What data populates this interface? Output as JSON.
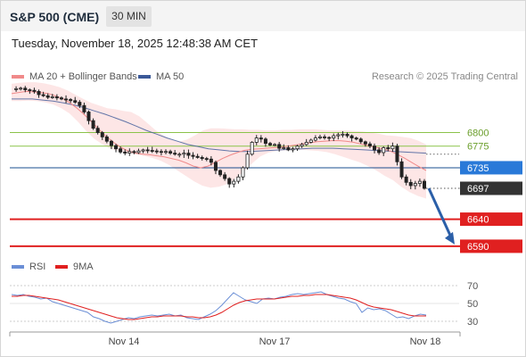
{
  "header": {
    "title": "S&P 500 (CME)",
    "timeframe": "30 MIN",
    "datetime": "Tuesday, November 18, 2025 12:48:38 AM CET"
  },
  "legend": {
    "ma20_label": "MA 20 + Bollinger Bands",
    "ma50_label": "MA 50",
    "copyright": "Research © 2025 Trading Central",
    "rsi_label": "RSI",
    "rsi_ma_label": "9MA"
  },
  "colors": {
    "ma20": "#f08a8a",
    "ma50": "#3b5998",
    "bollinger_fill": "#fde3e3",
    "resistance": "#8bc34a",
    "support": "#e02020",
    "pivot_line": "#1a4f8f",
    "pivot_tag": "#2979d8",
    "last_price_tag": "#333333",
    "arrow": "#2b5fa8",
    "rsi": "#6b8fd6",
    "rsi_ma": "#e02020"
  },
  "chart_data": [
    {
      "type": "candlestick",
      "title": "",
      "ylim": [
        6575,
        6880
      ],
      "levels": [
        {
          "value": 6800,
          "label": "6800",
          "kind": "resistance"
        },
        {
          "value": 6775,
          "label": "6775",
          "kind": "resistance"
        },
        {
          "value": 6735,
          "label": "6735",
          "kind": "pivot"
        },
        {
          "value": 6697,
          "label": "6697",
          "kind": "last"
        },
        {
          "value": 6640,
          "label": "6640",
          "kind": "support"
        },
        {
          "value": 6590,
          "label": "6590",
          "kind": "support"
        }
      ],
      "x_ticks": [
        "Nov 14",
        "Nov 17",
        "Nov 18"
      ],
      "close_path": [
        6880,
        6881,
        6882,
        6879,
        6878,
        6876,
        6870,
        6868,
        6865,
        6866,
        6864,
        6862,
        6861,
        6859,
        6856,
        6850,
        6838,
        6822,
        6808,
        6800,
        6792,
        6784,
        6776,
        6770,
        6764,
        6762,
        6765,
        6763,
        6766,
        6768,
        6767,
        6766,
        6765,
        6764,
        6765,
        6762,
        6760,
        6760,
        6762,
        6758,
        6756,
        6754,
        6752,
        6751,
        6745,
        6730,
        6722,
        6715,
        6705,
        6710,
        6718,
        6735,
        6760,
        6782,
        6790,
        6788,
        6780,
        6777,
        6778,
        6771,
        6772,
        6768,
        6770,
        6775,
        6778,
        6782,
        6786,
        6790,
        6792,
        6791,
        6790,
        6794,
        6796,
        6797,
        6794,
        6790,
        6788,
        6783,
        6779,
        6775,
        6768,
        6763,
        6772,
        6770,
        6775,
        6746,
        6718,
        6708,
        6702,
        6706,
        6710,
        6697
      ],
      "ma20_path": [
        6872,
        6874,
        6876,
        6875,
        6874,
        6872,
        6868,
        6863,
        6855,
        6845,
        6833,
        6820,
        6806,
        6793,
        6782,
        6773,
        6766,
        6762,
        6760,
        6759,
        6757,
        6755,
        6752,
        6749,
        6744,
        6738,
        6735,
        6738,
        6745,
        6752,
        6758,
        6763,
        6767,
        6769,
        6770,
        6771,
        6772,
        6773,
        6775,
        6777,
        6779,
        6781,
        6783,
        6784,
        6785,
        6785,
        6784,
        6782,
        6779,
        6776,
        6773,
        6770,
        6766,
        6760,
        6753,
        6745,
        6737,
        6730
      ],
      "bb_upper": [
        6890,
        6892,
        6893,
        6893,
        6891,
        6888,
        6884,
        6878,
        6870,
        6862,
        6855,
        6850,
        6845,
        6843,
        6840,
        6838,
        6830,
        6818,
        6805,
        6795,
        6787,
        6783,
        6787,
        6795,
        6804,
        6808,
        6808,
        6807,
        6806,
        6806,
        6805,
        6805,
        6804,
        6804,
        6805,
        6805,
        6806,
        6806,
        6806,
        6805,
        6804,
        6804,
        6804,
        6803,
        6802,
        6800,
        6798,
        6795,
        6794,
        6792,
        6790,
        6785,
        6778
      ],
      "bb_lower": [
        6858,
        6858,
        6859,
        6858,
        6856,
        6852,
        6845,
        6835,
        6820,
        6803,
        6788,
        6778,
        6770,
        6765,
        6762,
        6760,
        6757,
        6753,
        6748,
        6740,
        6730,
        6720,
        6710,
        6702,
        6698,
        6700,
        6705,
        6715,
        6728,
        6743,
        6756,
        6763,
        6766,
        6767,
        6768,
        6768,
        6767,
        6766,
        6764,
        6760,
        6755,
        6750,
        6745,
        6738,
        6730,
        6720,
        6712,
        6700,
        6690,
        6683,
        6678
      ],
      "ma50_path": [
        6862,
        6862,
        6862,
        6860,
        6858,
        6855,
        6851,
        6846,
        6840,
        6834,
        6827,
        6820,
        6812,
        6804,
        6797,
        6790,
        6784,
        6778,
        6774,
        6770,
        6768,
        6766,
        6765,
        6765,
        6766,
        6767,
        6768,
        6769,
        6770,
        6771,
        6771,
        6771,
        6770,
        6769,
        6768,
        6767,
        6766,
        6765,
        6764,
        6763,
        6762
      ]
    },
    {
      "type": "line",
      "title": "",
      "ylim": [
        20,
        80
      ],
      "y_ticks": [
        70,
        50,
        30
      ],
      "series": [
        {
          "name": "RSI",
          "values": [
            60,
            59,
            60,
            58,
            57,
            55,
            56,
            52,
            50,
            48,
            46,
            44,
            42,
            40,
            35,
            33,
            30,
            28,
            30,
            32,
            34,
            33,
            35,
            36,
            37,
            36,
            37,
            38,
            36,
            37,
            34,
            33,
            32,
            35,
            38,
            42,
            48,
            55,
            62,
            58,
            54,
            52,
            50,
            55,
            56,
            55,
            57,
            58,
            60,
            61,
            60,
            61,
            62,
            63,
            60,
            58,
            56,
            55,
            52,
            50,
            40,
            45,
            43,
            44,
            42,
            38,
            34,
            35,
            33,
            36,
            38,
            37
          ]
        },
        {
          "name": "9MA",
          "values": [
            58,
            58,
            59,
            59,
            58,
            57,
            56,
            55,
            54,
            52,
            50,
            48,
            46,
            44,
            42,
            40,
            38,
            36,
            34,
            33,
            32,
            32,
            33,
            34,
            35,
            35,
            36,
            36,
            36,
            36,
            35,
            35,
            34,
            34,
            35,
            37,
            40,
            44,
            48,
            51,
            53,
            54,
            55,
            55,
            55,
            55,
            56,
            57,
            58,
            58,
            59,
            59,
            60,
            60,
            60,
            59,
            58,
            57,
            56,
            54,
            51,
            48,
            46,
            45,
            44,
            43,
            41,
            39,
            37,
            36,
            36,
            36
          ]
        }
      ]
    }
  ]
}
